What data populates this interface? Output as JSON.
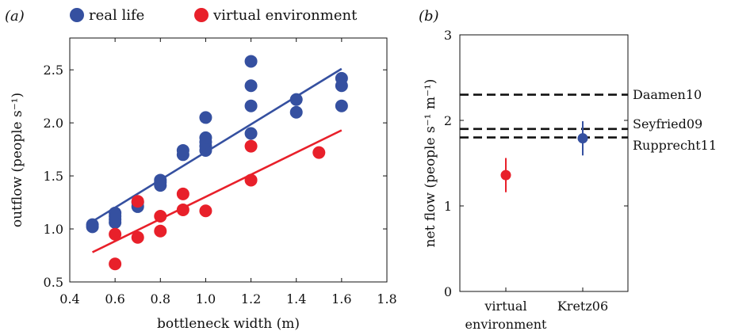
{
  "chart_data": [
    {
      "panel_label": "(a)",
      "type": "scatter",
      "xlabel": "bottleneck width (m)",
      "ylabel": "outflow (people s⁻¹)",
      "xlim": [
        0.4,
        1.8
      ],
      "ylim": [
        0.5,
        2.8
      ],
      "xticks": [
        0.4,
        0.6,
        0.8,
        1.0,
        1.2,
        1.4,
        1.6,
        1.8
      ],
      "xtick_labels": [
        "0.4",
        "0.6",
        "0.8",
        "1.0",
        "1.2",
        "1.4",
        "1.6",
        "1.8"
      ],
      "yticks": [
        0.5,
        1.0,
        1.5,
        2.0,
        2.5
      ],
      "ytick_labels": [
        "0.5",
        "1.0",
        "1.5",
        "2.0",
        "2.5"
      ],
      "grid": false,
      "legend_placement": "top",
      "series": [
        {
          "name": "real life",
          "color": "#3550a0",
          "points": [
            [
              0.5,
              1.02
            ],
            [
              0.5,
              1.04
            ],
            [
              0.6,
              1.06
            ],
            [
              0.6,
              1.09
            ],
            [
              0.6,
              1.12
            ],
            [
              0.6,
              1.15
            ],
            [
              0.7,
              1.21
            ],
            [
              0.7,
              1.25
            ],
            [
              0.8,
              1.41
            ],
            [
              0.8,
              1.44
            ],
            [
              0.8,
              1.46
            ],
            [
              0.9,
              1.7
            ],
            [
              0.9,
              1.74
            ],
            [
              1.0,
              1.74
            ],
            [
              1.0,
              1.78
            ],
            [
              1.0,
              1.82
            ],
            [
              1.0,
              1.86
            ],
            [
              1.0,
              2.05
            ],
            [
              1.2,
              1.9
            ],
            [
              1.2,
              2.16
            ],
            [
              1.2,
              2.35
            ],
            [
              1.2,
              2.58
            ],
            [
              1.4,
              2.1
            ],
            [
              1.4,
              2.22
            ],
            [
              1.6,
              2.16
            ],
            [
              1.6,
              2.35
            ],
            [
              1.6,
              2.42
            ]
          ],
          "fit": [
            [
              0.5,
              1.07
            ],
            [
              1.6,
              2.51
            ]
          ]
        },
        {
          "name": "virtual environment",
          "color": "#e8202a",
          "points": [
            [
              0.6,
              0.67
            ],
            [
              0.6,
              0.95
            ],
            [
              0.7,
              0.92
            ],
            [
              0.7,
              1.26
            ],
            [
              0.8,
              0.98
            ],
            [
              0.8,
              1.12
            ],
            [
              0.9,
              1.18
            ],
            [
              0.9,
              1.33
            ],
            [
              1.0,
              1.17
            ],
            [
              1.2,
              1.46
            ],
            [
              1.2,
              1.78
            ],
            [
              1.5,
              1.72
            ]
          ],
          "fit": [
            [
              0.5,
              0.78
            ],
            [
              1.6,
              1.93
            ]
          ]
        }
      ]
    },
    {
      "panel_label": "(b)",
      "type": "scatter",
      "ylabel": "net flow (people s⁻¹ m⁻¹)",
      "ylim": [
        0,
        3
      ],
      "yticks": [
        0,
        1,
        2,
        3
      ],
      "ytick_labels": [
        "0",
        "1",
        "2",
        "3"
      ],
      "grid": false,
      "categories": [
        "virtual\nenvironment",
        "Kretz06"
      ],
      "points": [
        {
          "category": 0,
          "value": 1.36,
          "err_low": 1.16,
          "err_high": 1.56,
          "color": "#e8202a"
        },
        {
          "category": 1,
          "value": 1.79,
          "err_low": 1.59,
          "err_high": 1.99,
          "color": "#3550a0"
        }
      ],
      "reference_lines": [
        {
          "label": "Daamen10",
          "value": 2.3
        },
        {
          "label": "Seyfried09",
          "value": 1.9
        },
        {
          "label": "Rupprecht11",
          "value": 1.8
        }
      ]
    }
  ]
}
